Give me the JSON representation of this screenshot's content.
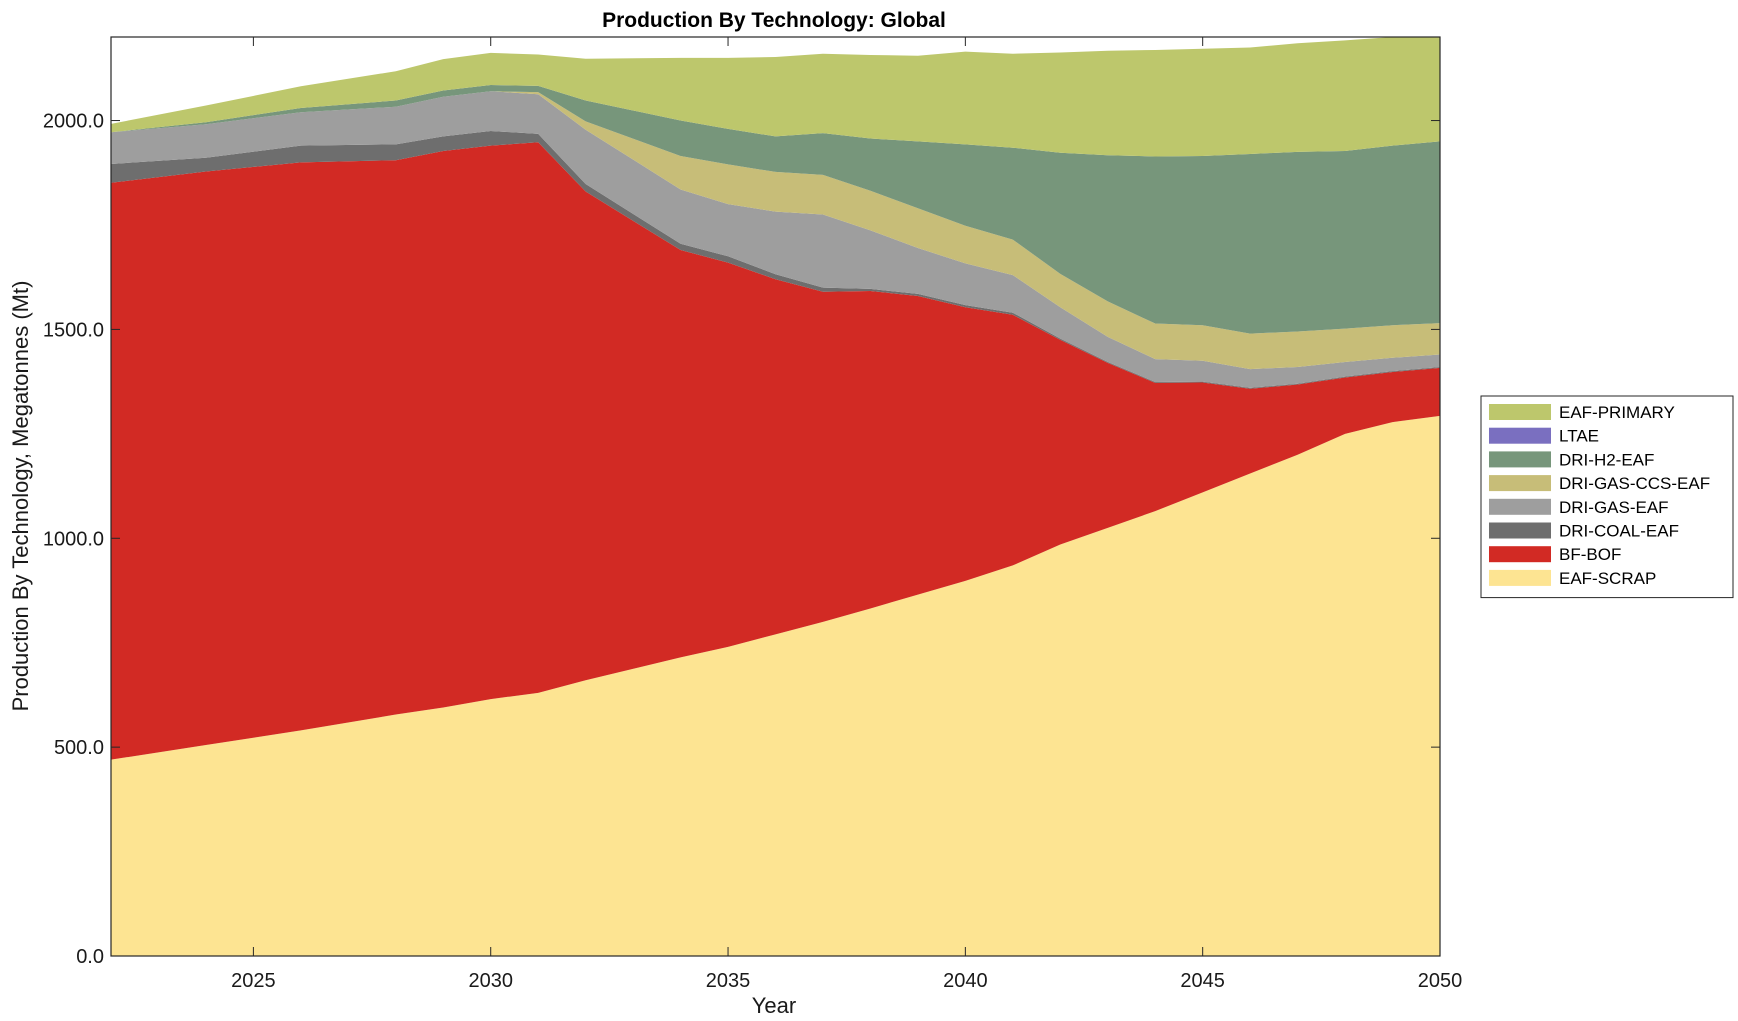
{
  "chart_data": {
    "type": "area",
    "stacked": true,
    "title": "Production By Technology: Global",
    "xlabel": "Year",
    "ylabel": "Production By Technology, Megatonnes (Mt)",
    "xlim": [
      2022,
      2050
    ],
    "ylim": [
      0,
      2200
    ],
    "xticks": [
      2025,
      2030,
      2035,
      2040,
      2045,
      2050
    ],
    "xtick_labels": [
      "2025",
      "2030",
      "2035",
      "2040",
      "2045",
      "2050"
    ],
    "yticks": [
      0,
      500,
      1000,
      1500,
      2000
    ],
    "ytick_labels": [
      "0.0",
      "500.0",
      "1000.0",
      "1500.0",
      "2000.0"
    ],
    "grid": false,
    "legend_position": "right",
    "x": [
      2022,
      2024,
      2026,
      2028,
      2029,
      2030,
      2031,
      2032,
      2034,
      2035,
      2036,
      2037,
      2038,
      2039,
      2040,
      2041,
      2042,
      2043,
      2044,
      2045,
      2046,
      2047,
      2048,
      2049,
      2050
    ],
    "series": [
      {
        "name": "EAF-SCRAP",
        "color": "#fde492",
        "values": [
          470,
          505,
          540,
          578,
          595,
          615,
          630,
          660,
          715,
          740,
          770,
          800,
          832,
          865,
          898,
          935,
          985,
          1025,
          1065,
          1110,
          1155,
          1200,
          1250,
          1278,
          1293
        ]
      },
      {
        "name": "BF-BOF",
        "color": "#d22a24",
        "values": [
          1381,
          1373,
          1360,
          1327,
          1332,
          1325,
          1318,
          1170,
          975,
          920,
          850,
          790,
          760,
          715,
          655,
          600,
          490,
          395,
          307,
          263,
          203,
          168,
          135,
          120,
          115
        ]
      },
      {
        "name": "DRI-COAL-EAF",
        "color": "#6e6e6e",
        "values": [
          45,
          33,
          40,
          38,
          35,
          35,
          20,
          18,
          15,
          15,
          12,
          10,
          5,
          5,
          5,
          5,
          3,
          2,
          2,
          2,
          2,
          2,
          2,
          2,
          2
        ]
      },
      {
        "name": "DRI-GAS-EAF",
        "color": "#9e9e9e",
        "values": [
          76,
          80,
          80,
          90,
          95,
          95,
          95,
          130,
          130,
          125,
          150,
          175,
          140,
          110,
          100,
          90,
          75,
          60,
          55,
          50,
          45,
          40,
          35,
          32,
          30
        ]
      },
      {
        "name": "DRI-GAS-CCS-EAF",
        "color": "#c7bd78",
        "values": [
          0,
          0,
          0,
          0,
          0,
          0,
          5,
          20,
          80,
          95,
          95,
          95,
          95,
          95,
          90,
          85,
          80,
          85,
          85,
          85,
          85,
          85,
          80,
          78,
          75
        ]
      },
      {
        "name": "DRI-H2-EAF",
        "color": "#77967b",
        "values": [
          0,
          5,
          10,
          15,
          15,
          15,
          15,
          50,
          85,
          85,
          85,
          100,
          125,
          160,
          195,
          220,
          290,
          350,
          400,
          405,
          430,
          430,
          425,
          430,
          435
        ]
      },
      {
        "name": "LTAE",
        "color": "#7a6fc0",
        "values": [
          0,
          0,
          0,
          0,
          0,
          0,
          0,
          0,
          0,
          0,
          0,
          0,
          0,
          0,
          0,
          0,
          0,
          0,
          0,
          0,
          0,
          0,
          0,
          0,
          0
        ]
      },
      {
        "name": "EAF-PRIMARY",
        "color": "#bdc76c",
        "values": [
          20,
          40,
          52,
          70,
          75,
          77,
          75,
          100,
          150,
          170,
          190,
          190,
          200,
          205,
          222,
          225,
          240,
          250,
          255,
          257,
          255,
          260,
          265,
          260,
          250
        ]
      }
    ],
    "legend_order": [
      "EAF-PRIMARY",
      "LTAE",
      "DRI-H2-EAF",
      "DRI-GAS-CCS-EAF",
      "DRI-GAS-EAF",
      "DRI-COAL-EAF",
      "BF-BOF",
      "EAF-SCRAP"
    ]
  }
}
